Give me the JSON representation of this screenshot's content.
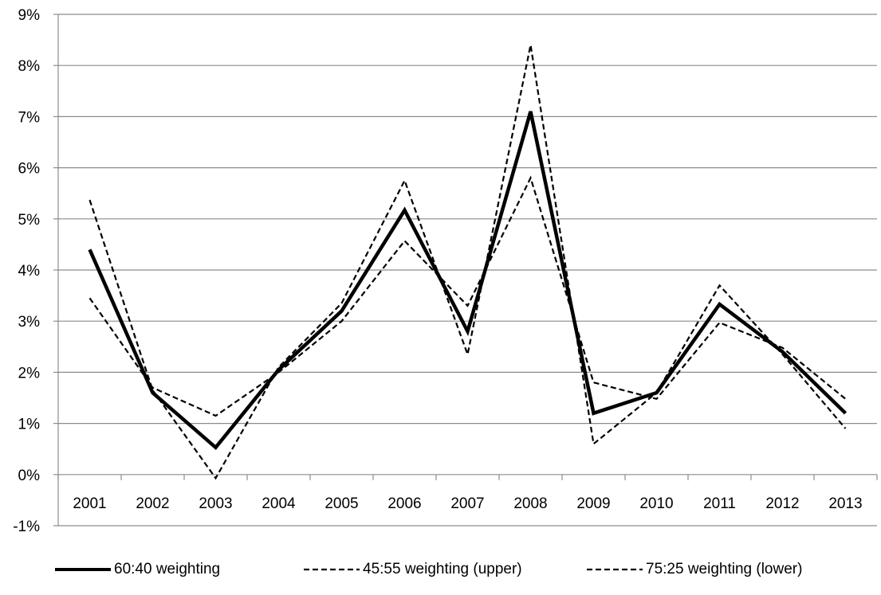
{
  "chart_data": {
    "type": "line",
    "title": "",
    "xlabel": "",
    "ylabel": "",
    "categories": [
      "2001",
      "2002",
      "2003",
      "2004",
      "2005",
      "2006",
      "2007",
      "2008",
      "2009",
      "2010",
      "2011",
      "2012",
      "2013"
    ],
    "y_ticks": [
      "-1%",
      "0%",
      "1%",
      "2%",
      "3%",
      "4%",
      "5%",
      "6%",
      "7%",
      "8%",
      "9%"
    ],
    "ylim": [
      -1,
      9
    ],
    "y_unit": "%",
    "grid": "horizontal",
    "legend_position": "bottom",
    "series": [
      {
        "name": "60:40 weighting",
        "style": "solid-thick",
        "color": "#000000",
        "values": [
          4.4,
          1.6,
          0.53,
          2.05,
          3.2,
          5.17,
          2.8,
          7.1,
          1.2,
          1.6,
          3.33,
          2.4,
          1.2
        ]
      },
      {
        "name": "45:55 weighting (upper)",
        "style": "dashed",
        "color": "#000000",
        "values": [
          5.37,
          1.65,
          -0.07,
          2.1,
          3.35,
          5.75,
          2.35,
          8.4,
          0.6,
          1.6,
          3.7,
          2.35,
          0.9
        ]
      },
      {
        "name": "75:25 weighting (lower)",
        "style": "dashed",
        "color": "#000000",
        "values": [
          3.45,
          1.7,
          1.15,
          2.0,
          3.0,
          4.57,
          3.3,
          5.8,
          1.8,
          1.48,
          2.97,
          2.48,
          1.48
        ]
      }
    ]
  }
}
